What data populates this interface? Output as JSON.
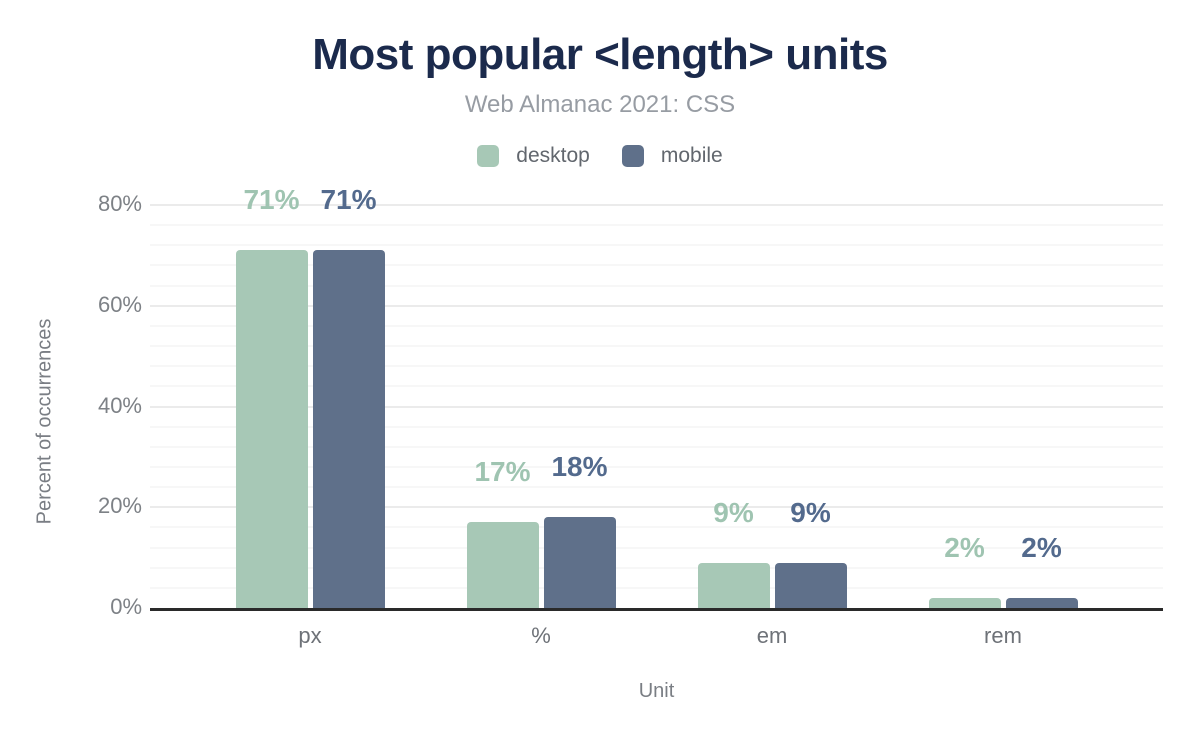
{
  "chart_data": {
    "type": "bar",
    "title": "Most popular <length> units",
    "subtitle": "Web Almanac 2021: CSS",
    "categories": [
      "px",
      "%",
      "em",
      "rem"
    ],
    "series": [
      {
        "name": "desktop",
        "color": "#a7c8b6",
        "label_color": "#9fc4b1",
        "values": [
          71,
          17,
          9,
          2
        ],
        "labels": [
          "71%",
          "17%",
          "9%",
          "2%"
        ]
      },
      {
        "name": "mobile",
        "color": "#5f708a",
        "label_color": "#536a8d",
        "values": [
          71,
          18,
          9,
          2
        ],
        "labels": [
          "71%",
          "18%",
          "9%",
          "2%"
        ]
      }
    ],
    "xlabel": "Unit",
    "ylabel": "Percent of occurrences",
    "ylim": [
      0,
      80
    ],
    "yticks": [
      0,
      20,
      40,
      60,
      80
    ],
    "ytick_labels": [
      "0%",
      "20%",
      "40%",
      "60%",
      "80%"
    ],
    "minor_grid_step": 4,
    "major_grid_step": 20,
    "grid": "on",
    "legend_position": "top"
  },
  "style_colors": {
    "title": "#1b2a4c",
    "subtitle": "#979ca3",
    "axis_line": "#2a2a2a",
    "tick_text": "#7d8186",
    "major_grid": "#ebebeb",
    "minor_grid": "#f7f7f7"
  }
}
